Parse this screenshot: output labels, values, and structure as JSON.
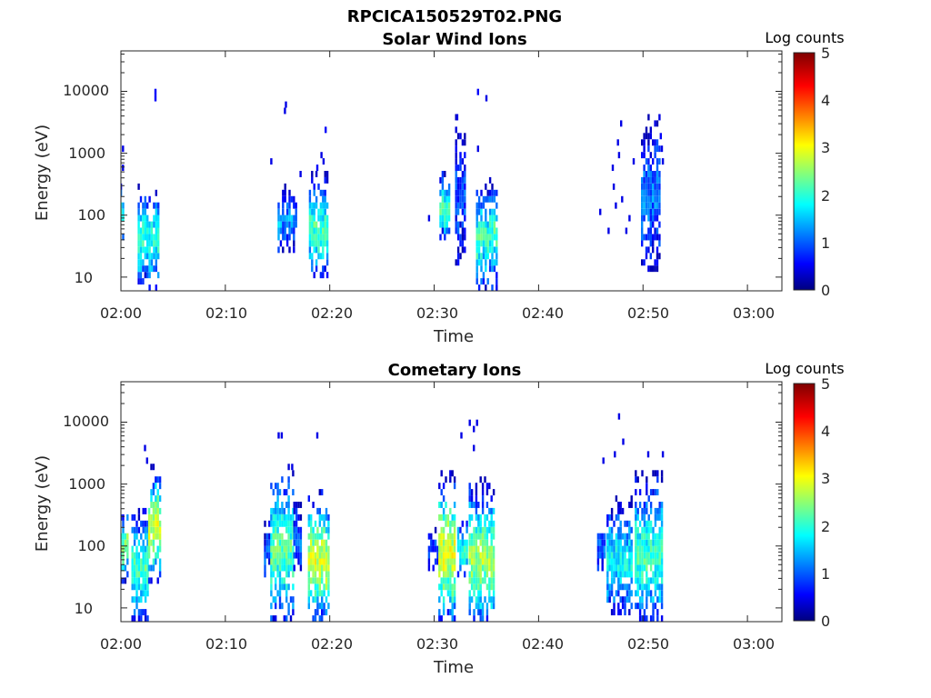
{
  "figure": {
    "title": "RPCICA150529T02.PNG"
  },
  "colormap": {
    "name": "jet",
    "stops": [
      "#00007f",
      "#0000ff",
      "#007fff",
      "#00ffff",
      "#7fff7f",
      "#ffff00",
      "#ff7f00",
      "#ff0000",
      "#7f0000"
    ]
  },
  "chart_data": [
    {
      "type": "heatmap",
      "title": "Solar Wind Ions",
      "xlabel": "Time",
      "ylabel": "Energy (eV)",
      "x_ticks": [
        "02:00",
        "02:10",
        "02:20",
        "02:30",
        "02:40",
        "02:50",
        "03:00"
      ],
      "x_tick_minutes": [
        0,
        10,
        20,
        30,
        40,
        50,
        60
      ],
      "xlim_minutes": [
        0,
        63.3
      ],
      "y_scale": "log",
      "y_ticks": [
        "10",
        "100",
        "1000",
        "10000"
      ],
      "y_tick_values": [
        10,
        100,
        1000,
        10000
      ],
      "ylim": [
        6,
        45000
      ],
      "colorbar": {
        "label": "Log counts",
        "ticks": [
          "0",
          "1",
          "2",
          "3",
          "4",
          "5"
        ],
        "range": [
          0,
          5
        ]
      },
      "bursts": [
        {
          "start_min": -0.1,
          "end_min": 0.3,
          "e_low": 40,
          "e_high": 300,
          "peak": 2.0
        },
        {
          "start_min": 1.6,
          "end_min": 3.5,
          "e_low": 7,
          "e_high": 320,
          "peak": 2.1
        },
        {
          "start_min": 15.0,
          "end_min": 16.8,
          "e_low": 28,
          "e_high": 300,
          "peak": 1.4
        },
        {
          "start_min": 18.0,
          "end_min": 19.8,
          "e_low": 10,
          "e_high": 450,
          "peak": 2.2
        },
        {
          "start_min": 30.5,
          "end_min": 31.4,
          "e_low": 40,
          "e_high": 500,
          "peak": 2.3
        },
        {
          "start_min": 32.0,
          "end_min": 33.0,
          "e_low": 15,
          "e_high": 4000,
          "peak": 1.0
        },
        {
          "start_min": 34.0,
          "end_min": 35.9,
          "e_low": 7,
          "e_high": 400,
          "peak": 2.2
        },
        {
          "start_min": 49.8,
          "end_min": 51.5,
          "e_low": 15,
          "e_high": 5000,
          "peak": 1.2
        }
      ],
      "scatter": [
        {
          "t": 0.1,
          "e": 1150,
          "v": 0.5
        },
        {
          "t": 0.1,
          "e": 600,
          "v": 0.5
        },
        {
          "t": 3.2,
          "e": 10500,
          "v": 0.6
        },
        {
          "t": 3.2,
          "e": 7200,
          "v": 0.6
        },
        {
          "t": 14.3,
          "e": 730,
          "v": 0.5
        },
        {
          "t": 15.7,
          "e": 5500,
          "v": 0.5
        },
        {
          "t": 15.6,
          "e": 4300,
          "v": 0.5
        },
        {
          "t": 19.5,
          "e": 2400,
          "v": 0.6
        },
        {
          "t": 19.1,
          "e": 900,
          "v": 0.5
        },
        {
          "t": 19.3,
          "e": 800,
          "v": 0.5
        },
        {
          "t": 18.7,
          "e": 520,
          "v": 0.6
        },
        {
          "t": 17.1,
          "e": 470,
          "v": 0.5
        },
        {
          "t": 29.4,
          "e": 90,
          "v": 0.5
        },
        {
          "t": 34.1,
          "e": 10500,
          "v": 0.6
        },
        {
          "t": 34.9,
          "e": 8000,
          "v": 0.5
        },
        {
          "t": 32.1,
          "e": 4000,
          "v": 0.5
        },
        {
          "t": 34.1,
          "e": 1100,
          "v": 0.5
        },
        {
          "t": 45.8,
          "e": 120,
          "v": 0.5
        },
        {
          "t": 46.6,
          "e": 50,
          "v": 0.5
        },
        {
          "t": 47.8,
          "e": 2700,
          "v": 0.5
        },
        {
          "t": 47.6,
          "e": 900,
          "v": 0.5
        },
        {
          "t": 47.0,
          "e": 650,
          "v": 0.5
        },
        {
          "t": 47.5,
          "e": 1400,
          "v": 0.5
        },
        {
          "t": 47.1,
          "e": 300,
          "v": 0.5
        },
        {
          "t": 47.9,
          "e": 200,
          "v": 0.5
        },
        {
          "t": 47.3,
          "e": 130,
          "v": 0.5
        },
        {
          "t": 48.6,
          "e": 80,
          "v": 0.5
        },
        {
          "t": 48.3,
          "e": 50,
          "v": 0.5
        },
        {
          "t": 49.0,
          "e": 700,
          "v": 0.5
        },
        {
          "t": 51.6,
          "e": 1800,
          "v": 0.6
        },
        {
          "t": 51.7,
          "e": 1200,
          "v": 0.5
        },
        {
          "t": 51.8,
          "e": 800,
          "v": 0.5
        }
      ]
    },
    {
      "type": "heatmap",
      "title": "Cometary Ions",
      "xlabel": "Time",
      "ylabel": "Energy (eV)",
      "x_ticks": [
        "02:00",
        "02:10",
        "02:20",
        "02:30",
        "02:40",
        "02:50",
        "03:00"
      ],
      "x_tick_minutes": [
        0,
        10,
        20,
        30,
        40,
        50,
        60
      ],
      "xlim_minutes": [
        0,
        63.3
      ],
      "y_scale": "log",
      "y_ticks": [
        "10",
        "100",
        "1000",
        "10000"
      ],
      "y_tick_values": [
        10,
        100,
        1000,
        10000
      ],
      "ylim": [
        6,
        45000
      ],
      "colorbar": {
        "label": "Log counts",
        "ticks": [
          "0",
          "1",
          "2",
          "3",
          "4",
          "5"
        ],
        "range": [
          0,
          5
        ]
      },
      "bursts": [
        {
          "start_min": -0.1,
          "end_min": 0.6,
          "e_low": 30,
          "e_high": 400,
          "peak": 2.6
        },
        {
          "start_min": 1.0,
          "end_min": 2.6,
          "e_low": 6,
          "e_high": 450,
          "peak": 2.2
        },
        {
          "start_min": 2.6,
          "end_min": 3.8,
          "e_low": 30,
          "e_high": 2000,
          "peak": 2.9
        },
        {
          "start_min": 13.7,
          "end_min": 14.3,
          "e_low": 30,
          "e_high": 250,
          "peak": 1.0
        },
        {
          "start_min": 14.3,
          "end_min": 16.5,
          "e_low": 6,
          "e_high": 2000,
          "peak": 2.3
        },
        {
          "start_min": 16.5,
          "end_min": 17.3,
          "e_low": 40,
          "e_high": 500,
          "peak": 1.1
        },
        {
          "start_min": 17.9,
          "end_min": 19.9,
          "e_low": 6,
          "e_high": 800,
          "peak": 2.9
        },
        {
          "start_min": 29.4,
          "end_min": 30.3,
          "e_low": 40,
          "e_high": 200,
          "peak": 1.0
        },
        {
          "start_min": 30.4,
          "end_min": 32.0,
          "e_low": 6,
          "e_high": 1600,
          "peak": 3.0
        },
        {
          "start_min": 32.2,
          "end_min": 33.2,
          "e_low": 25,
          "e_high": 300,
          "peak": 2.0
        },
        {
          "start_min": 33.3,
          "end_min": 35.8,
          "e_low": 6,
          "e_high": 1200,
          "peak": 2.7
        },
        {
          "start_min": 45.6,
          "end_min": 46.4,
          "e_low": 30,
          "e_high": 200,
          "peak": 1.2
        },
        {
          "start_min": 46.5,
          "end_min": 48.8,
          "e_low": 8,
          "e_high": 600,
          "peak": 1.9
        },
        {
          "start_min": 49.2,
          "end_min": 51.9,
          "e_low": 6,
          "e_high": 1600,
          "peak": 2.2
        }
      ],
      "scatter": [
        {
          "t": 2.2,
          "e": 3800,
          "v": 0.5
        },
        {
          "t": 2.4,
          "e": 2600,
          "v": 0.5
        },
        {
          "t": 15.0,
          "e": 5500,
          "v": 0.5
        },
        {
          "t": 15.3,
          "e": 6200,
          "v": 0.5
        },
        {
          "t": 18.7,
          "e": 5800,
          "v": 0.5
        },
        {
          "t": 16.3,
          "e": 2000,
          "v": 0.5
        },
        {
          "t": 33.3,
          "e": 10500,
          "v": 0.5
        },
        {
          "t": 34.0,
          "e": 10500,
          "v": 0.5
        },
        {
          "t": 33.7,
          "e": 7000,
          "v": 0.5
        },
        {
          "t": 32.5,
          "e": 6000,
          "v": 0.5
        },
        {
          "t": 33.7,
          "e": 3500,
          "v": 0.5
        },
        {
          "t": 47.6,
          "e": 12500,
          "v": 0.5
        },
        {
          "t": 48.0,
          "e": 4300,
          "v": 0.5
        },
        {
          "t": 47.2,
          "e": 3400,
          "v": 0.5
        },
        {
          "t": 46.1,
          "e": 2200,
          "v": 0.5
        },
        {
          "t": 50.4,
          "e": 3000,
          "v": 0.5
        },
        {
          "t": 51.8,
          "e": 3000,
          "v": 0.5
        }
      ]
    }
  ]
}
